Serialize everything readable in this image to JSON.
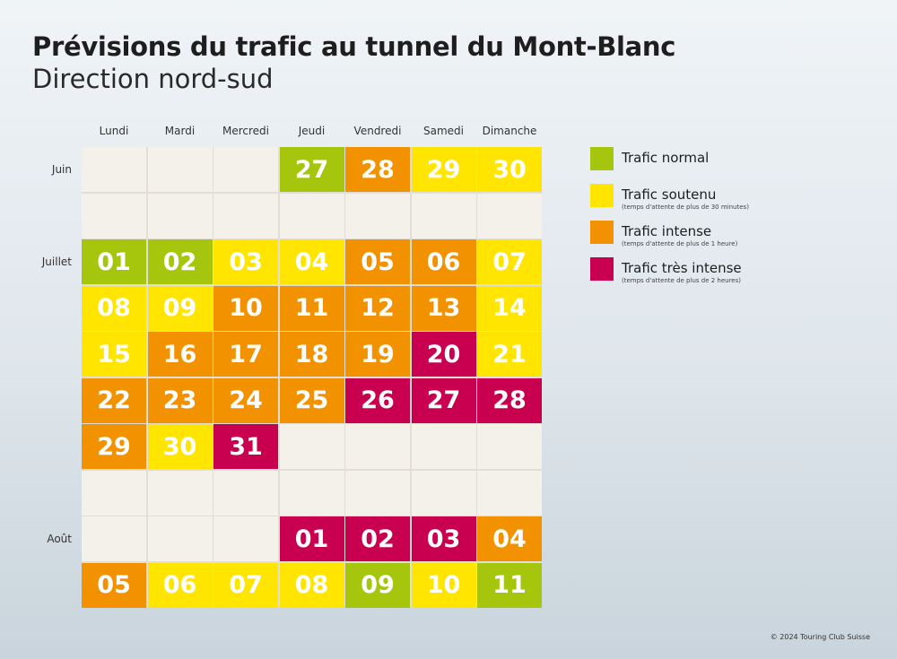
{
  "header": {
    "title": "Prévisions du trafic au tunnel du Mont-Blanc",
    "subtitle": "Direction nord-sud"
  },
  "colors": {
    "normal": "#a6c60d",
    "soutenu": "#ffe500",
    "intense": "#f39200",
    "tres_intense": "#c8004f",
    "empty": "#f4f0ea"
  },
  "legend": [
    {
      "key": "normal",
      "label": "Trafic normal",
      "note": ""
    },
    {
      "key": "soutenu",
      "label": "Trafic soutenu",
      "note": "(temps d'attente de plus de 30 minutes)"
    },
    {
      "key": "intense",
      "label": "Trafic intense",
      "note": "(temps d'attente de plus de 1 heure)"
    },
    {
      "key": "tres_intense",
      "label": "Trafic très intense",
      "note": "(temps d'attente de plus de 2 heures)"
    }
  ],
  "footer": {
    "copyright": "© 2024 Touring Club Suisse"
  },
  "chart_data": {
    "type": "heatmap",
    "title": "Prévisions du trafic au tunnel du Mont-Blanc",
    "subtitle": "Direction nord-sud",
    "columns": [
      "Lundi",
      "Mardi",
      "Mercredi",
      "Jeudi",
      "Vendredi",
      "Samedi",
      "Dimanche"
    ],
    "month_labels": [
      {
        "row": 0,
        "label": "Juin"
      },
      {
        "row": 2,
        "label": "Juillet"
      },
      {
        "row": 8,
        "label": "Août"
      }
    ],
    "levels": [
      "normal",
      "soutenu",
      "intense",
      "tres_intense"
    ],
    "rows": [
      [
        null,
        null,
        null,
        {
          "day": "27",
          "level": "normal"
        },
        {
          "day": "28",
          "level": "intense"
        },
        {
          "day": "29",
          "level": "soutenu"
        },
        {
          "day": "30",
          "level": "soutenu"
        }
      ],
      [
        null,
        null,
        null,
        null,
        null,
        null,
        null
      ],
      [
        {
          "day": "01",
          "level": "normal"
        },
        {
          "day": "02",
          "level": "normal"
        },
        {
          "day": "03",
          "level": "soutenu"
        },
        {
          "day": "04",
          "level": "soutenu"
        },
        {
          "day": "05",
          "level": "intense"
        },
        {
          "day": "06",
          "level": "intense"
        },
        {
          "day": "07",
          "level": "soutenu"
        }
      ],
      [
        {
          "day": "08",
          "level": "soutenu"
        },
        {
          "day": "09",
          "level": "soutenu"
        },
        {
          "day": "10",
          "level": "intense"
        },
        {
          "day": "11",
          "level": "intense"
        },
        {
          "day": "12",
          "level": "intense"
        },
        {
          "day": "13",
          "level": "intense"
        },
        {
          "day": "14",
          "level": "soutenu"
        }
      ],
      [
        {
          "day": "15",
          "level": "soutenu"
        },
        {
          "day": "16",
          "level": "intense"
        },
        {
          "day": "17",
          "level": "intense"
        },
        {
          "day": "18",
          "level": "intense"
        },
        {
          "day": "19",
          "level": "intense"
        },
        {
          "day": "20",
          "level": "tres_intense"
        },
        {
          "day": "21",
          "level": "soutenu"
        }
      ],
      [
        {
          "day": "22",
          "level": "intense"
        },
        {
          "day": "23",
          "level": "intense"
        },
        {
          "day": "24",
          "level": "intense"
        },
        {
          "day": "25",
          "level": "intense"
        },
        {
          "day": "26",
          "level": "tres_intense"
        },
        {
          "day": "27",
          "level": "tres_intense"
        },
        {
          "day": "28",
          "level": "tres_intense"
        }
      ],
      [
        {
          "day": "29",
          "level": "intense"
        },
        {
          "day": "30",
          "level": "soutenu"
        },
        {
          "day": "31",
          "level": "tres_intense"
        },
        null,
        null,
        null,
        null
      ],
      [
        null,
        null,
        null,
        null,
        null,
        null,
        null
      ],
      [
        null,
        null,
        null,
        {
          "day": "01",
          "level": "tres_intense"
        },
        {
          "day": "02",
          "level": "tres_intense"
        },
        {
          "day": "03",
          "level": "tres_intense"
        },
        {
          "day": "04",
          "level": "intense"
        }
      ],
      [
        {
          "day": "05",
          "level": "intense"
        },
        {
          "day": "06",
          "level": "soutenu"
        },
        {
          "day": "07",
          "level": "soutenu"
        },
        {
          "day": "08",
          "level": "soutenu"
        },
        {
          "day": "09",
          "level": "normal"
        },
        {
          "day": "10",
          "level": "soutenu"
        },
        {
          "day": "11",
          "level": "normal"
        }
      ]
    ]
  }
}
